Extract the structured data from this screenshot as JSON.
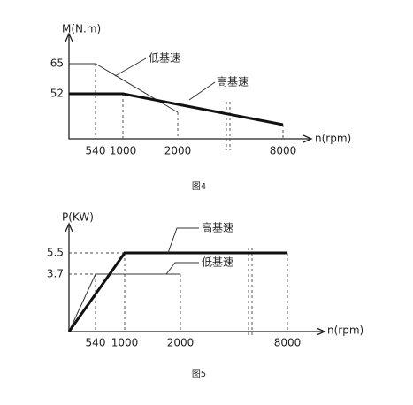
{
  "figures": [
    {
      "y_label": "M(N.m)",
      "x_label": "n(rpm)",
      "y_ticks": [
        "65",
        "52"
      ],
      "x_ticks": [
        "540",
        "1000",
        "2000",
        "8000"
      ],
      "curves": [
        "低基速",
        "高基速"
      ],
      "caption": "图4"
    },
    {
      "y_label": "P(KW)",
      "x_label": "n(rpm)",
      "y_ticks": [
        "5.5",
        "3.7"
      ],
      "x_ticks": [
        "540",
        "1000",
        "2000",
        "8000"
      ],
      "curves": [
        "高基速",
        "低基速"
      ],
      "caption": "图5"
    }
  ]
}
